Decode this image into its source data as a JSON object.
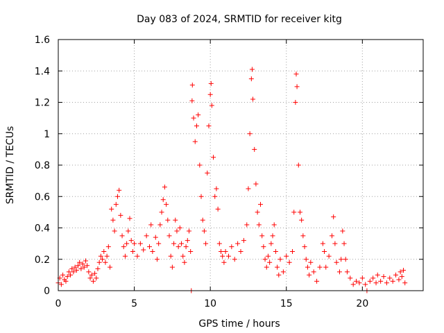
{
  "chart_data": {
    "type": "scatter",
    "title": "Day 083 of 2024, SRMTID for receiver kitg",
    "xlabel": "GPS time / hours",
    "ylabel": "SRMTID / TECUs",
    "xlim": [
      0,
      24
    ],
    "ylim": [
      0,
      1.6
    ],
    "xticks": [
      0,
      5,
      10,
      15,
      20
    ],
    "yticks": [
      0,
      0.2,
      0.4,
      0.6,
      0.8,
      1,
      1.2,
      1.4,
      1.6
    ],
    "xtick_labels": [
      "0",
      "5",
      "10",
      "15",
      "20"
    ],
    "ytick_labels": [
      "0",
      "0.2",
      "0.4",
      "0.6",
      "0.8",
      "1",
      "1.2",
      "1.4",
      "1.6"
    ],
    "grid": true,
    "marker": "plus",
    "color": "#ff0000",
    "series": [
      {
        "name": "SRMTID",
        "points": [
          [
            0.0,
            0.05
          ],
          [
            0.1,
            0.08
          ],
          [
            0.2,
            0.04
          ],
          [
            0.3,
            0.1
          ],
          [
            0.4,
            0.07
          ],
          [
            0.5,
            0.06
          ],
          [
            0.6,
            0.09
          ],
          [
            0.7,
            0.12
          ],
          [
            0.8,
            0.1
          ],
          [
            0.9,
            0.14
          ],
          [
            1.0,
            0.12
          ],
          [
            1.1,
            0.15
          ],
          [
            1.2,
            0.13
          ],
          [
            1.3,
            0.16
          ],
          [
            1.4,
            0.18
          ],
          [
            1.5,
            0.14
          ],
          [
            1.6,
            0.17
          ],
          [
            1.7,
            0.15
          ],
          [
            1.8,
            0.19
          ],
          [
            1.9,
            0.16
          ],
          [
            2.0,
            0.12
          ],
          [
            2.1,
            0.08
          ],
          [
            2.2,
            0.1
          ],
          [
            2.3,
            0.06
          ],
          [
            2.4,
            0.11
          ],
          [
            2.5,
            0.08
          ],
          [
            2.6,
            0.14
          ],
          [
            2.7,
            0.18
          ],
          [
            2.8,
            0.22
          ],
          [
            2.9,
            0.2
          ],
          [
            3.0,
            0.25
          ],
          [
            3.1,
            0.18
          ],
          [
            3.2,
            0.22
          ],
          [
            3.3,
            0.28
          ],
          [
            3.4,
            0.15
          ],
          [
            3.5,
            0.52
          ],
          [
            3.6,
            0.45
          ],
          [
            3.7,
            0.38
          ],
          [
            3.8,
            0.55
          ],
          [
            3.9,
            0.6
          ],
          [
            4.0,
            0.64
          ],
          [
            4.1,
            0.48
          ],
          [
            4.2,
            0.35
          ],
          [
            4.3,
            0.28
          ],
          [
            4.4,
            0.22
          ],
          [
            4.5,
            0.3
          ],
          [
            4.6,
            0.38
          ],
          [
            4.7,
            0.46
          ],
          [
            4.8,
            0.32
          ],
          [
            4.9,
            0.25
          ],
          [
            5.0,
            0.3
          ],
          [
            5.2,
            0.22
          ],
          [
            5.4,
            0.3
          ],
          [
            5.6,
            0.26
          ],
          [
            5.8,
            0.35
          ],
          [
            6.0,
            0.28
          ],
          [
            6.1,
            0.42
          ],
          [
            6.2,
            0.25
          ],
          [
            6.4,
            0.34
          ],
          [
            6.5,
            0.2
          ],
          [
            6.6,
            0.3
          ],
          [
            6.7,
            0.42
          ],
          [
            6.8,
            0.5
          ],
          [
            6.9,
            0.58
          ],
          [
            7.0,
            0.66
          ],
          [
            7.1,
            0.55
          ],
          [
            7.2,
            0.45
          ],
          [
            7.3,
            0.35
          ],
          [
            7.4,
            0.22
          ],
          [
            7.5,
            0.15
          ],
          [
            7.6,
            0.3
          ],
          [
            7.7,
            0.45
          ],
          [
            7.8,
            0.38
          ],
          [
            7.9,
            0.28
          ],
          [
            8.0,
            0.4
          ],
          [
            8.1,
            0.3
          ],
          [
            8.2,
            0.22
          ],
          [
            8.3,
            0.18
          ],
          [
            8.4,
            0.28
          ],
          [
            8.5,
            0.32
          ],
          [
            8.6,
            0.38
          ],
          [
            8.7,
            0.25
          ],
          [
            8.75,
            0.0
          ],
          [
            8.8,
            1.21
          ],
          [
            8.82,
            1.31
          ],
          [
            8.9,
            1.1
          ],
          [
            9.0,
            0.95
          ],
          [
            9.1,
            1.05
          ],
          [
            9.2,
            1.12
          ],
          [
            9.3,
            0.8
          ],
          [
            9.4,
            0.6
          ],
          [
            9.5,
            0.45
          ],
          [
            9.6,
            0.38
          ],
          [
            9.7,
            0.3
          ],
          [
            9.8,
            0.75
          ],
          [
            9.9,
            1.05
          ],
          [
            10.0,
            1.25
          ],
          [
            10.05,
            1.32
          ],
          [
            10.1,
            1.18
          ],
          [
            10.2,
            0.85
          ],
          [
            10.3,
            0.6
          ],
          [
            10.4,
            0.65
          ],
          [
            10.5,
            0.52
          ],
          [
            10.6,
            0.3
          ],
          [
            10.7,
            0.25
          ],
          [
            10.8,
            0.22
          ],
          [
            10.9,
            0.18
          ],
          [
            11.0,
            0.25
          ],
          [
            11.2,
            0.22
          ],
          [
            11.4,
            0.28
          ],
          [
            11.6,
            0.2
          ],
          [
            11.8,
            0.3
          ],
          [
            12.0,
            0.25
          ],
          [
            12.2,
            0.32
          ],
          [
            12.4,
            0.42
          ],
          [
            12.5,
            0.65
          ],
          [
            12.6,
            1.0
          ],
          [
            12.7,
            1.35
          ],
          [
            12.75,
            1.41
          ],
          [
            12.8,
            1.22
          ],
          [
            12.9,
            0.9
          ],
          [
            13.0,
            0.68
          ],
          [
            13.1,
            0.5
          ],
          [
            13.2,
            0.42
          ],
          [
            13.3,
            0.55
          ],
          [
            13.4,
            0.35
          ],
          [
            13.5,
            0.28
          ],
          [
            13.6,
            0.2
          ],
          [
            13.7,
            0.15
          ],
          [
            13.8,
            0.22
          ],
          [
            13.9,
            0.18
          ],
          [
            14.0,
            0.3
          ],
          [
            14.1,
            0.35
          ],
          [
            14.2,
            0.42
          ],
          [
            14.3,
            0.25
          ],
          [
            14.4,
            0.15
          ],
          [
            14.5,
            0.1
          ],
          [
            14.6,
            0.2
          ],
          [
            14.8,
            0.12
          ],
          [
            15.0,
            0.22
          ],
          [
            15.2,
            0.18
          ],
          [
            15.4,
            0.25
          ],
          [
            15.5,
            0.5
          ],
          [
            15.6,
            1.2
          ],
          [
            15.65,
            1.38
          ],
          [
            15.7,
            1.3
          ],
          [
            15.8,
            0.8
          ],
          [
            15.9,
            0.5
          ],
          [
            16.0,
            0.45
          ],
          [
            16.1,
            0.35
          ],
          [
            16.2,
            0.28
          ],
          [
            16.3,
            0.2
          ],
          [
            16.4,
            0.15
          ],
          [
            16.5,
            0.1
          ],
          [
            16.6,
            0.18
          ],
          [
            16.8,
            0.12
          ],
          [
            17.0,
            0.06
          ],
          [
            17.2,
            0.15
          ],
          [
            17.4,
            0.3
          ],
          [
            17.5,
            0.25
          ],
          [
            17.6,
            0.15
          ],
          [
            17.8,
            0.22
          ],
          [
            18.0,
            0.35
          ],
          [
            18.1,
            0.47
          ],
          [
            18.2,
            0.3
          ],
          [
            18.3,
            0.18
          ],
          [
            18.5,
            0.12
          ],
          [
            18.6,
            0.2
          ],
          [
            18.7,
            0.38
          ],
          [
            18.8,
            0.3
          ],
          [
            18.9,
            0.2
          ],
          [
            19.0,
            0.12
          ],
          [
            19.2,
            0.08
          ],
          [
            19.4,
            0.04
          ],
          [
            19.6,
            0.06
          ],
          [
            19.8,
            0.05
          ],
          [
            20.0,
            0.08
          ],
          [
            20.2,
            0.04
          ],
          [
            20.3,
            0.0
          ],
          [
            20.5,
            0.06
          ],
          [
            20.7,
            0.08
          ],
          [
            20.9,
            0.05
          ],
          [
            21.0,
            0.1
          ],
          [
            21.2,
            0.06
          ],
          [
            21.4,
            0.09
          ],
          [
            21.6,
            0.05
          ],
          [
            21.8,
            0.08
          ],
          [
            22.0,
            0.06
          ],
          [
            22.2,
            0.1
          ],
          [
            22.4,
            0.07
          ],
          [
            22.5,
            0.12
          ],
          [
            22.6,
            0.09
          ],
          [
            22.7,
            0.13
          ],
          [
            22.8,
            0.05
          ]
        ]
      }
    ]
  }
}
